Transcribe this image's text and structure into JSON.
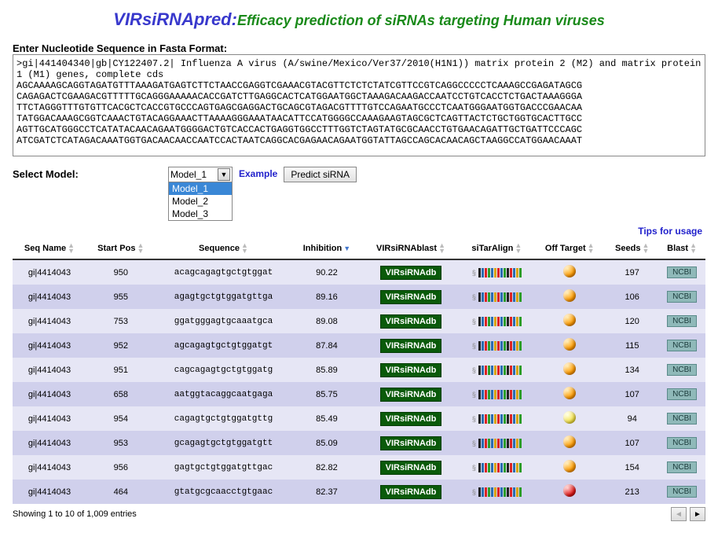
{
  "title": {
    "part1": "VIRsiRNApred",
    "sep": ":",
    "part2": "Efficacy prediction of siRNAs targeting Human viruses"
  },
  "input": {
    "label": "Enter Nucleotide Sequence in Fasta Format:",
    "value": ">gi|441404340|gb|CY122407.2| Influenza A virus (A/swine/Mexico/Ver37/2010(H1N1)) matrix protein 2 (M2) and matrix protein 1 (M1) genes, complete cds\nAGCAAAAGCAGGTAGATGTTTAAAGATGAGTCTTCTAACCGAGGTCGAAACGTACGTTCTCTCTATCGTTCCGTCAGGCCCCCTCAAAGCCGAGATAGCG\nCAGAGACTCGAAGACGTTTTTGCAGGGAAAAACACCGATCTTGAGGCACTCATGGAATGGCTAAAGACAAGACCAATCCTGTCACCTCTGACTAAAGGGA\nTTCTAGGGTTTGTGTTCACGCTCACCGTGCCCAGTGAGCGAGGACTGCAGCGTAGACGTTTTGTCCAGAATGCCCTCAATGGGAATGGTGACCCGAACAA\nTATGGACAAAGCGGTCAAACTGTACAGGAAACTTAAAAGGGAAATAACATTCCATGGGGCCAAAGAAGTAGCGCTCAGTTACTCTGCTGGTGCACTTGCC\nAGTTGCATGGGCCTCATATACAACAGAATGGGGACTGTCACCACTGAGGTGGCCTTTGGTCTAGTATGCGCAACCTGTGAACAGATTGCTGATTCCCAGC\nATCGATCTCATAGACAAATGGTGACAACAACCAATCCACTAATCAGGCACGAGAACAGAATGGTATTAGCCAGCACAACAGCTAAGGCCATGGAACAAAT"
  },
  "model": {
    "label": "Select Model:",
    "selected": "Model_1",
    "options": [
      "Model_1",
      "Model_2",
      "Model_3"
    ],
    "example_label": "Example",
    "predict_label": "Predict siRNA"
  },
  "tips_label": "Tips for usage",
  "columns": {
    "seq_name": "Seq Name",
    "start_pos": "Start Pos",
    "sequence": "Sequence",
    "inhibition": "Inhibition",
    "blast_db": "VIRsiRNAblast",
    "sitaralign": "siTarAlign",
    "off_target": "Off Target",
    "seeds": "Seeds",
    "blast": "Blast"
  },
  "sort_col": "inhibition",
  "badge_labels": {
    "db": "VIRsiRNAdb",
    "blast": "NCBI"
  },
  "rows": [
    {
      "name": "gi|4414043",
      "pos": "950",
      "seq": "acagcagagtgctgtggat",
      "inh": "90.22",
      "orb": "orange",
      "seeds": "197"
    },
    {
      "name": "gi|4414043",
      "pos": "955",
      "seq": "agagtgctgtggatgttga",
      "inh": "89.16",
      "orb": "orange",
      "seeds": "106"
    },
    {
      "name": "gi|4414043",
      "pos": "753",
      "seq": "ggatgggagtgcaaatgca",
      "inh": "89.08",
      "orb": "orange",
      "seeds": "120"
    },
    {
      "name": "gi|4414043",
      "pos": "952",
      "seq": "agcagagtgctgtggatgt",
      "inh": "87.84",
      "orb": "orange",
      "seeds": "115"
    },
    {
      "name": "gi|4414043",
      "pos": "951",
      "seq": "cagcagagtgctgtggatg",
      "inh": "85.89",
      "orb": "orange",
      "seeds": "134"
    },
    {
      "name": "gi|4414043",
      "pos": "658",
      "seq": "aatggtacaggcaatgaga",
      "inh": "85.75",
      "orb": "orange",
      "seeds": "107"
    },
    {
      "name": "gi|4414043",
      "pos": "954",
      "seq": "cagagtgctgtggatgttg",
      "inh": "85.49",
      "orb": "yellow",
      "seeds": "94"
    },
    {
      "name": "gi|4414043",
      "pos": "953",
      "seq": "gcagagtgctgtggatgtt",
      "inh": "85.09",
      "orb": "orange",
      "seeds": "107"
    },
    {
      "name": "gi|4414043",
      "pos": "956",
      "seq": "gagtgctgtggatgttgac",
      "inh": "82.82",
      "orb": "orange",
      "seeds": "154"
    },
    {
      "name": "gi|4414043",
      "pos": "464",
      "seq": "gtatgcgcaacctgtgaac",
      "inh": "82.37",
      "orb": "red",
      "seeds": "213"
    }
  ],
  "footer": {
    "info": "Showing 1 to 10 of 1,009 entries"
  }
}
